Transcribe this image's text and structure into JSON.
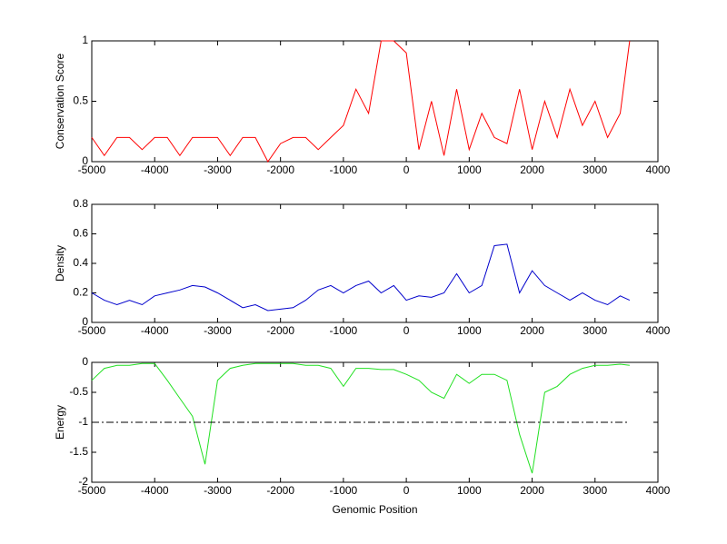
{
  "chart_data": [
    {
      "type": "line",
      "ylabel": "Conservation Score",
      "x": [
        -5000,
        -4800,
        -4600,
        -4400,
        -4200,
        -4000,
        -3800,
        -3600,
        -3400,
        -3200,
        -3000,
        -2800,
        -2600,
        -2400,
        -2200,
        -2000,
        -1800,
        -1600,
        -1400,
        -1200,
        -1000,
        -800,
        -600,
        -400,
        -200,
        0,
        200,
        400,
        600,
        800,
        1000,
        1200,
        1400,
        1600,
        1800,
        2000,
        2200,
        2400,
        2600,
        2800,
        3000,
        3200,
        3400,
        3550
      ],
      "series": [
        {
          "color": "#ff0000",
          "values": [
            0.2,
            0.05,
            0.2,
            0.2,
            0.1,
            0.2,
            0.2,
            0.05,
            0.2,
            0.2,
            0.2,
            0.05,
            0.2,
            0.2,
            0,
            0.15,
            0.2,
            0.2,
            0.1,
            0.2,
            0.3,
            0.6,
            0.4,
            1,
            1,
            0.9,
            0.1,
            0.5,
            0.05,
            0.6,
            0.1,
            0.4,
            0.2,
            0.15,
            0.6,
            0.1,
            0.5,
            0.2,
            0.6,
            0.3,
            0.5,
            0.2,
            0.4,
            1
          ]
        }
      ],
      "xlim": [
        -5000,
        4000
      ],
      "xticks": [
        -5000,
        -4000,
        -3000,
        -2000,
        -1000,
        0,
        1000,
        2000,
        3000,
        4000
      ],
      "ylim": [
        0,
        1
      ],
      "yticks": [
        0,
        0.5,
        1
      ]
    },
    {
      "type": "line",
      "ylabel": "Density",
      "x": [
        -5000,
        -4800,
        -4600,
        -4400,
        -4200,
        -4000,
        -3800,
        -3600,
        -3400,
        -3200,
        -3000,
        -2800,
        -2600,
        -2400,
        -2200,
        -2000,
        -1800,
        -1600,
        -1400,
        -1200,
        -1000,
        -800,
        -600,
        -400,
        -200,
        0,
        200,
        400,
        600,
        800,
        1000,
        1200,
        1400,
        1600,
        1800,
        2000,
        2200,
        2400,
        2600,
        2800,
        3000,
        3200,
        3400,
        3550
      ],
      "series": [
        {
          "color": "#0000cc",
          "values": [
            0.2,
            0.15,
            0.12,
            0.15,
            0.12,
            0.18,
            0.2,
            0.22,
            0.25,
            0.24,
            0.2,
            0.15,
            0.1,
            0.12,
            0.08,
            0.09,
            0.1,
            0.15,
            0.22,
            0.25,
            0.2,
            0.25,
            0.28,
            0.2,
            0.25,
            0.15,
            0.18,
            0.17,
            0.2,
            0.33,
            0.2,
            0.25,
            0.52,
            0.53,
            0.2,
            0.35,
            0.25,
            0.2,
            0.15,
            0.2,
            0.15,
            0.12,
            0.18,
            0.15
          ]
        }
      ],
      "xlim": [
        -5000,
        4000
      ],
      "xticks": [
        -5000,
        -4000,
        -3000,
        -2000,
        -1000,
        0,
        1000,
        2000,
        3000,
        4000
      ],
      "ylim": [
        0,
        0.8
      ],
      "yticks": [
        0,
        0.2,
        0.4,
        0.6,
        0.8
      ]
    },
    {
      "type": "line",
      "ylabel": "Energy",
      "xlabel": "Genomic Position",
      "hline": -1,
      "x": [
        -5000,
        -4800,
        -4600,
        -4400,
        -4200,
        -4000,
        -3800,
        -3600,
        -3400,
        -3200,
        -3000,
        -2800,
        -2600,
        -2400,
        -2200,
        -2000,
        -1800,
        -1600,
        -1400,
        -1200,
        -1000,
        -800,
        -600,
        -400,
        -200,
        0,
        200,
        400,
        600,
        800,
        1000,
        1200,
        1400,
        1600,
        1800,
        2000,
        2200,
        2400,
        2600,
        2800,
        3000,
        3200,
        3400,
        3550
      ],
      "series": [
        {
          "color": "#22e022",
          "values": [
            -0.3,
            -0.1,
            -0.05,
            -0.05,
            -0.02,
            -0.02,
            -0.3,
            -0.6,
            -0.9,
            -1.7,
            -0.3,
            -0.1,
            -0.05,
            -0.02,
            -0.02,
            -0.02,
            -0.02,
            -0.05,
            -0.05,
            -0.1,
            -0.4,
            -0.1,
            -0.1,
            -0.12,
            -0.12,
            -0.2,
            -0.3,
            -0.5,
            -0.6,
            -0.2,
            -0.35,
            -0.2,
            -0.2,
            -0.3,
            -1.2,
            -1.85,
            -0.5,
            -0.4,
            -0.2,
            -0.1,
            -0.05,
            -0.05,
            -0.03,
            -0.05
          ]
        }
      ],
      "xlim": [
        -5000,
        4000
      ],
      "xticks": [
        -5000,
        -4000,
        -3000,
        -2000,
        -1000,
        0,
        1000,
        2000,
        3000,
        4000
      ],
      "ylim": [
        -2,
        0
      ],
      "yticks": [
        -2,
        -1.5,
        -1,
        -0.5,
        0
      ]
    }
  ]
}
